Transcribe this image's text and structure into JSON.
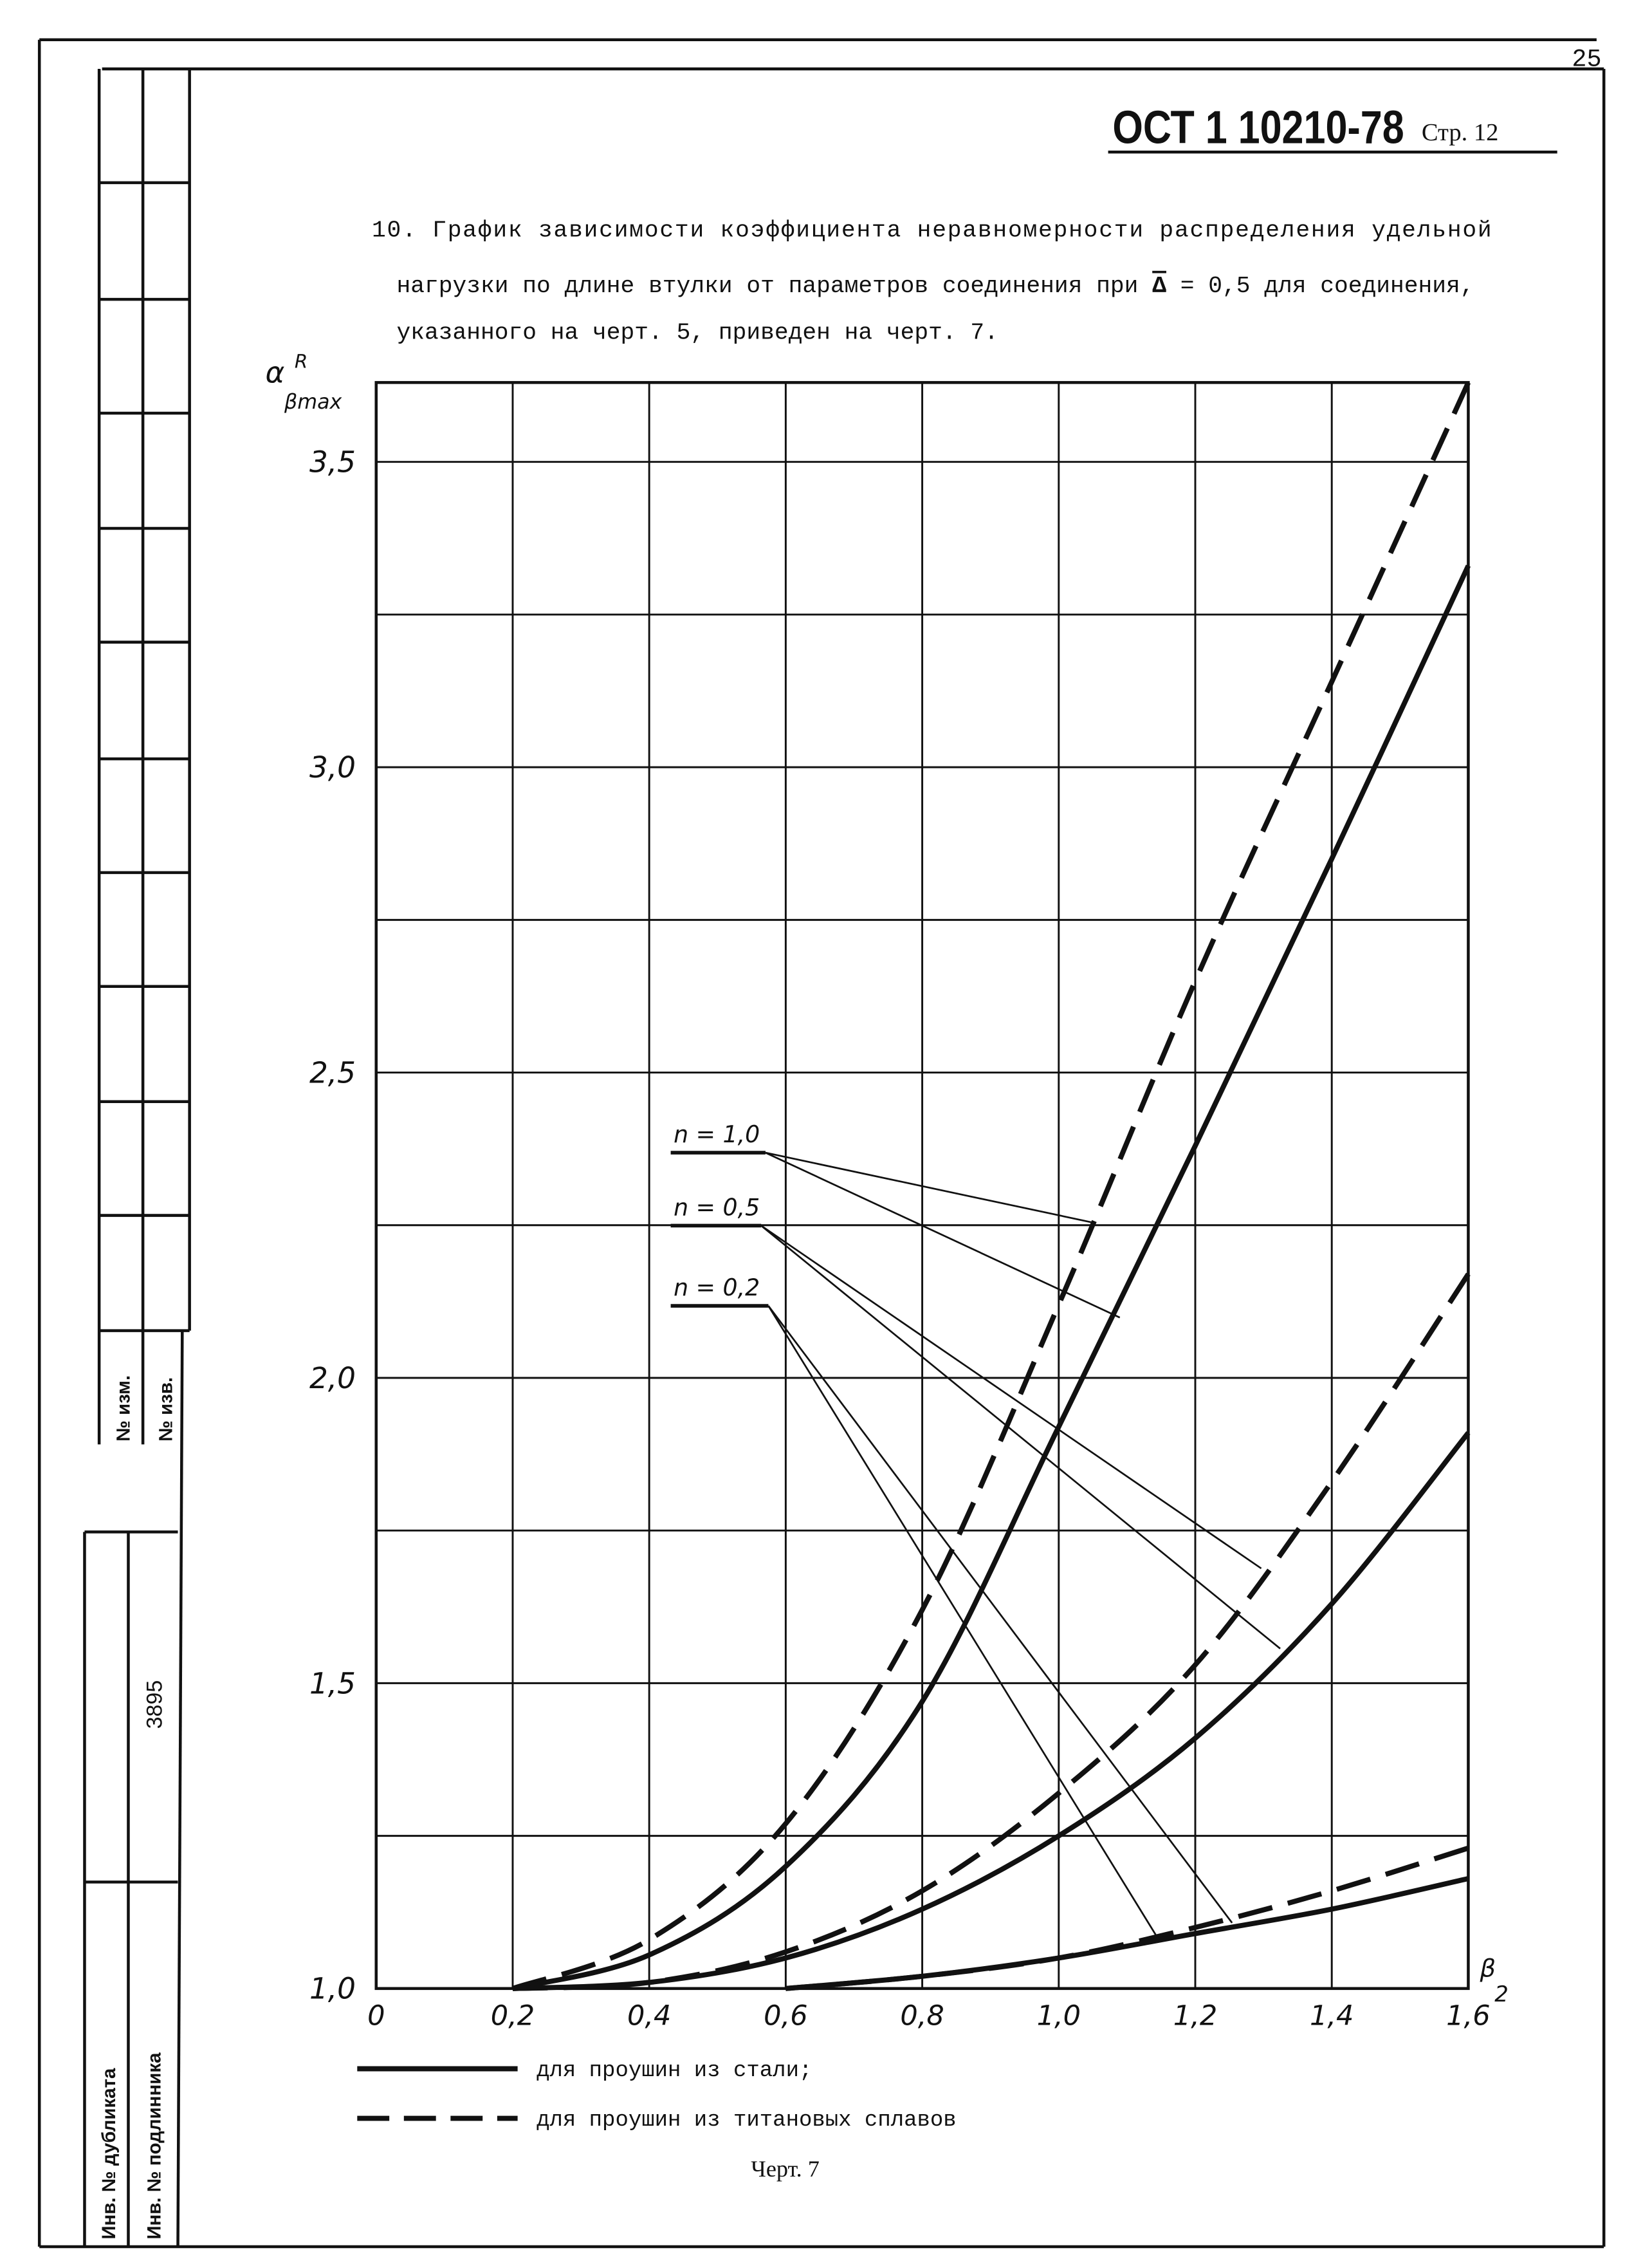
{
  "page_number": "25",
  "header": {
    "standard": "ОСТ 1 10210-78",
    "page": "Стр. 12"
  },
  "paragraph": {
    "line1": "10. График зависимости коэффициента неравномерности распределения удельной",
    "line2_before": "нагрузки по длине втулки от параметров соединения при ",
    "line2_symbol": "Δ",
    "line2_after": " = 0,5 для соединения,",
    "line3": "указанного на черт. 5, приведен на черт. 7."
  },
  "chart_data": {
    "type": "line",
    "x_label": {
      "base": "β",
      "sub": "2"
    },
    "y_label": {
      "base": "α",
      "sup": "R",
      "sub": "βmax"
    },
    "x": [
      0.2,
      0.4,
      0.6,
      0.8,
      1.0,
      1.2,
      1.4,
      1.6
    ],
    "xlim": [
      0,
      1.6
    ],
    "ylim": [
      1.0,
      3.63
    ],
    "xticks": [
      0,
      {
        "value": 0.2,
        "label": "0,2"
      },
      {
        "value": 0.4,
        "label": "0,4"
      },
      {
        "value": 0.6,
        "label": "0,6"
      },
      {
        "value": 0.8,
        "label": "0,8"
      },
      {
        "value": 1.0,
        "label": "1,0"
      },
      {
        "value": 1.2,
        "label": "1,2"
      },
      {
        "value": 1.4,
        "label": "1,4"
      },
      {
        "value": 1.6,
        "label": "1,6"
      }
    ],
    "yticks": [
      {
        "value": 1.0,
        "label": "1,0"
      },
      {
        "value": 1.5,
        "label": "1,5"
      },
      {
        "value": 2.0,
        "label": "2,0"
      },
      {
        "value": 2.5,
        "label": "2,5"
      },
      {
        "value": 3.0,
        "label": "3,0"
      },
      {
        "value": 3.5,
        "label": "3,5"
      }
    ],
    "y_minor_gridlines": [
      1.25,
      1.75,
      2.25,
      2.75,
      3.25
    ],
    "grid": true,
    "color": "#111111",
    "legend": {
      "steel": "для проушин из стали;",
      "titanium": "для проушин из титановых сплавов"
    },
    "series": [
      {
        "name": "n = 1,0",
        "steel": [
          1.0,
          1.055,
          1.2,
          1.47,
          1.92,
          2.38,
          2.85,
          3.33
        ],
        "titanium": [
          1.0,
          1.08,
          1.27,
          1.62,
          2.12,
          2.65,
          3.14,
          3.63
        ]
      },
      {
        "name": "n = 0,5",
        "steel": [
          1.0,
          1.01,
          1.05,
          1.13,
          1.25,
          1.41,
          1.63,
          1.91
        ],
        "titanium": [
          1.0,
          1.01,
          1.06,
          1.16,
          1.32,
          1.53,
          1.83,
          2.17
        ]
      },
      {
        "name": "n = 0,2",
        "steel": [
          null,
          null,
          1.0,
          1.02,
          1.05,
          1.09,
          1.13,
          1.18
        ],
        "titanium": [
          null,
          null,
          1.0,
          1.02,
          1.05,
          1.1,
          1.16,
          1.23
        ]
      }
    ]
  },
  "caption": "Черт. 7",
  "sidebar": {
    "change_no": "№ изм.",
    "notice_no": "№ изв.",
    "duplicate_inv": "Инв. № дубликата",
    "original_inv": "Инв. № подлинника",
    "original_inv_value": "3895"
  }
}
